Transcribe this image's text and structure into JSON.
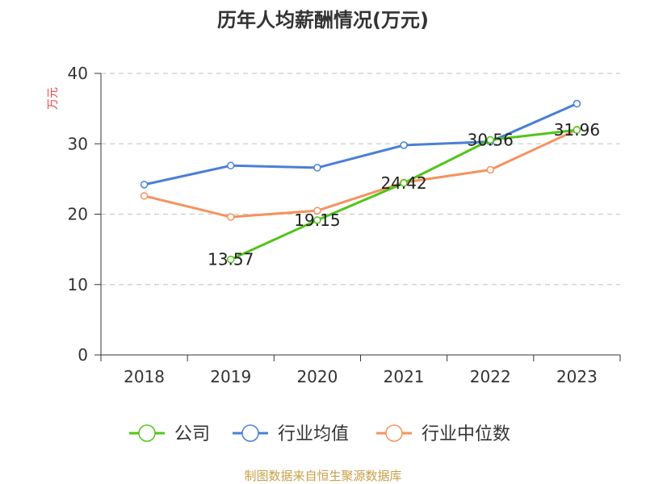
{
  "chart_data": {
    "type": "line",
    "title": "历年人均薪酬情况(万元)",
    "ylabel": "万元",
    "ylim": [
      0,
      40
    ],
    "yticks": [
      0,
      10,
      20,
      30,
      40
    ],
    "categories": [
      "2018",
      "2019",
      "2020",
      "2021",
      "2022",
      "2023"
    ],
    "grid": true,
    "legend_position": "bottom",
    "series": [
      {
        "name": "公司",
        "color": "#52c41a",
        "values": [
          null,
          13.57,
          19.15,
          24.42,
          30.56,
          31.96
        ],
        "labels": [
          "",
          "13.57",
          "19.15",
          "24.42",
          "30.56",
          "31.96"
        ]
      },
      {
        "name": "行业均值",
        "color": "#4a7fd6",
        "values": [
          24.2,
          26.9,
          26.6,
          29.8,
          30.3,
          35.7
        ]
      },
      {
        "name": "行业中位数",
        "color": "#f5925e",
        "values": [
          22.6,
          19.6,
          20.5,
          24.5,
          26.3,
          32.0
        ]
      }
    ]
  },
  "source_text": "制图数据来自恒生聚源数据库",
  "colors": {
    "ylabel": "#e84a4a",
    "source": "#c8a04a",
    "grid": "#cccccc",
    "axis": "#333333"
  }
}
